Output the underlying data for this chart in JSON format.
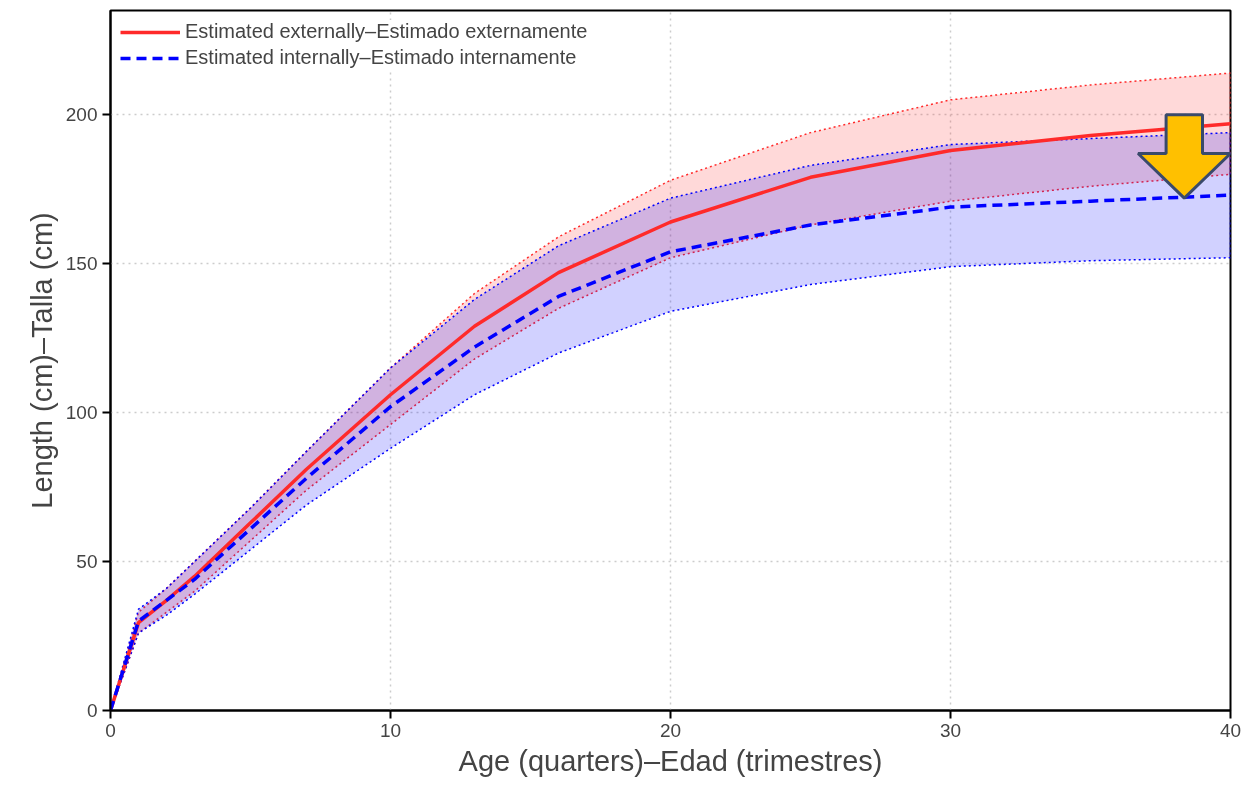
{
  "chart_data": {
    "type": "line",
    "xlabel": "Age (quarters)–Edad (trimestres)",
    "ylabel": "Length (cm)–Talla (cm)",
    "xlim": [
      0,
      40
    ],
    "ylim": [
      0,
      235
    ],
    "xticks": [
      0,
      10,
      20,
      30,
      40
    ],
    "yticks": [
      0,
      50,
      100,
      150,
      200
    ],
    "grid": true,
    "legend": "top left",
    "series": [
      {
        "name": "Estimated externally–Estimado externamente",
        "color": "#ff2a2a",
        "line_style": "solid",
        "x": [
          0,
          1,
          2,
          3,
          5,
          7,
          10,
          13,
          16,
          20,
          25,
          30,
          35,
          40
        ],
        "values": [
          0,
          29.5,
          37,
          45,
          63,
          81,
          106,
          129,
          147,
          164,
          179,
          188,
          193,
          197
        ],
        "lower": [
          0,
          26,
          33,
          40,
          57,
          74,
          96,
          118,
          135,
          152,
          163,
          171,
          176,
          180
        ],
        "upper": [
          0,
          33,
          41,
          50,
          68,
          87,
          115,
          140,
          159,
          178,
          194,
          205,
          210,
          214
        ]
      },
      {
        "name": "Estimated internally–Estimado internamente",
        "color": "#0000ff",
        "line_style": "dashed",
        "x": [
          0,
          1,
          2,
          3,
          5,
          7,
          10,
          13,
          16,
          20,
          25,
          30,
          35,
          40
        ],
        "values": [
          0,
          30,
          37,
          44,
          61,
          78,
          102,
          122,
          139,
          154,
          163,
          169,
          171,
          173
        ],
        "lower": [
          0,
          26,
          32,
          39,
          54,
          69,
          88,
          106,
          120,
          134,
          143,
          149,
          151,
          152
        ],
        "upper": [
          0,
          34,
          41,
          50,
          68,
          87,
          115,
          138,
          156,
          172,
          183,
          190,
          192,
          194
        ]
      }
    ]
  }
}
